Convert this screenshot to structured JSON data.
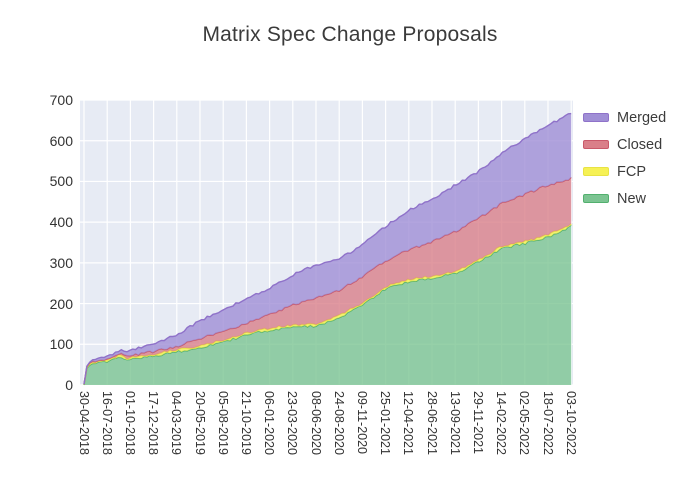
{
  "title": "Matrix Spec Change Proposals",
  "colors": {
    "page_bg": "#ffffff",
    "plot_bg": "#e7ebf4",
    "grid": "#ffffff",
    "title_text": "#3b3b3b",
    "tick_text": "#333333",
    "legend_text": "#3c3c3c"
  },
  "chart_data": {
    "type": "area",
    "stacked": true,
    "title": "Matrix Spec Change Proposals",
    "xlabel": "",
    "ylabel": "",
    "ylim": [
      0,
      700
    ],
    "y_ticks": [
      0,
      100,
      200,
      300,
      400,
      500,
      600,
      700
    ],
    "grid": true,
    "legend_position": "right",
    "legend_order": [
      "Merged",
      "Closed",
      "FCP",
      "New"
    ],
    "x_tick_labels": [
      "30-04-2018",
      "16-07-2018",
      "01-10-2018",
      "17-12-2018",
      "04-03-2019",
      "20-05-2019",
      "05-08-2019",
      "21-10-2019",
      "06-01-2020",
      "23-03-2020",
      "08-06-2020",
      "24-08-2020",
      "09-11-2020",
      "25-01-2021",
      "12-04-2021",
      "28-06-2021",
      "13-09-2021",
      "29-11-2021",
      "14-02-2022",
      "02-05-2022",
      "18-07-2022",
      "03-10-2022"
    ],
    "x": [
      0,
      0.1,
      0.3,
      1,
      1.55,
      1.85,
      2,
      3,
      4,
      5,
      6,
      7,
      8,
      9,
      10,
      11,
      12,
      13,
      14,
      15,
      16,
      17,
      18,
      19,
      20,
      21
    ],
    "series": [
      {
        "name": "New",
        "fill": "#7cc492",
        "line": "#52b06e",
        "values": [
          0,
          40,
          52,
          57,
          70,
          62,
          65,
          71,
          82,
          92,
          106,
          123,
          135,
          143,
          145,
          166,
          197,
          237,
          254,
          263,
          274,
          303,
          336,
          348,
          364,
          390
        ]
      },
      {
        "name": "FCP",
        "fill": "#f6f155",
        "line": "#e8e344",
        "values": [
          0,
          2,
          3,
          4,
          4,
          4,
          4,
          4,
          4,
          4,
          4,
          4,
          4,
          4,
          4,
          4,
          4,
          4,
          4,
          4,
          4,
          4,
          4,
          4,
          4,
          5
        ]
      },
      {
        "name": "Closed",
        "fill": "#da7f89",
        "line": "#c9596a",
        "values": [
          0,
          1,
          2,
          3,
          3,
          4,
          4,
          7,
          8,
          19,
          21,
          24,
          33,
          49,
          64,
          63,
          65,
          64,
          74,
          85,
          99,
          102,
          106,
          116,
          123,
          113
        ]
      },
      {
        "name": "Merged",
        "fill": "#a08fd6",
        "line": "#8f72c9",
        "values": [
          0,
          2,
          3,
          6,
          9,
          11,
          13,
          20,
          29,
          43,
          53,
          62,
          65,
          74,
          82,
          76,
          78,
          84,
          98,
          103,
          114,
          115,
          123,
          138,
          147,
          160
        ]
      }
    ],
    "totals_at_ticks": {
      "16-07-2018": 70,
      "06-01-2020": 237,
      "09-11-2020": 344,
      "13-09-2021": 491,
      "03-10-2022": 668
    }
  }
}
